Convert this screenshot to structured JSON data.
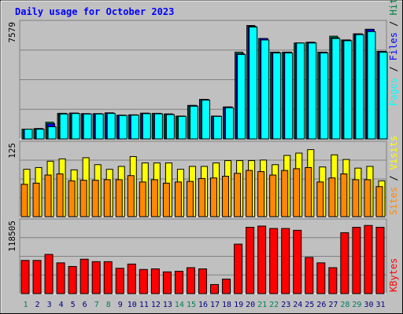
{
  "title": "Daily usage for October 2023",
  "colors": {
    "page_bg": "#c0c0c0",
    "plot_bg": "#c0c0c0",
    "title": "#0000ff",
    "hits": "#00ffff",
    "files": "#0000ff",
    "pages": "#00ffff",
    "visits": "#ffff00",
    "sites": "#ff8800",
    "kbytes": "#ff0000",
    "weekend_day": "#00805c",
    "weekday_day": "#000080",
    "divider_hits": "#008040",
    "divider_files": "#0000ff",
    "divider_pages": "#00c0c0",
    "divider_visits": "#c0c000",
    "divider_sites": "#ff8000"
  },
  "chart_data": [
    {
      "type": "bar",
      "panel": "hits-files-pages",
      "ylabel": [
        "Hits",
        "Files",
        "Pages"
      ],
      "ymax_label": "7579",
      "ylim": [
        0,
        7579
      ],
      "categories": [
        "1",
        "2",
        "3",
        "4",
        "5",
        "6",
        "7",
        "8",
        "9",
        "10",
        "11",
        "12",
        "13",
        "14",
        "15",
        "16",
        "17",
        "18",
        "19",
        "20",
        "21",
        "22",
        "23",
        "24",
        "25",
        "26",
        "27",
        "28",
        "29",
        "30",
        "31"
      ],
      "series": [
        {
          "name": "Hits",
          "values": [
            640,
            680,
            1100,
            1680,
            1700,
            1660,
            1660,
            1710,
            1560,
            1580,
            1690,
            1680,
            1640,
            1500,
            2200,
            2600,
            1500,
            2100,
            5700,
            7450,
            6600,
            5700,
            5700,
            6300,
            6350,
            5700,
            6750,
            6500,
            6900,
            7200,
            5750
          ]
        },
        {
          "name": "Files",
          "values": [
            640,
            680,
            1000,
            1680,
            1700,
            1660,
            1660,
            1710,
            1560,
            1580,
            1690,
            1680,
            1640,
            1500,
            2200,
            2600,
            1500,
            2100,
            5600,
            7400,
            6600,
            5700,
            5700,
            6300,
            6350,
            5700,
            6650,
            6500,
            6900,
            7200,
            5750
          ]
        },
        {
          "name": "Pages",
          "values": [
            640,
            640,
            800,
            1640,
            1670,
            1640,
            1640,
            1680,
            1540,
            1560,
            1660,
            1650,
            1600,
            1480,
            2150,
            2550,
            1480,
            2050,
            5550,
            7350,
            6500,
            5650,
            5650,
            6300,
            6300,
            5650,
            6600,
            6450,
            6850,
            7050,
            5700
          ]
        }
      ]
    },
    {
      "type": "bar",
      "panel": "visits-sites",
      "ylabel": [
        "Visits",
        "Sites"
      ],
      "ymax_label": "125",
      "ylim": [
        0,
        125
      ],
      "categories": [
        "1",
        "2",
        "3",
        "4",
        "5",
        "6",
        "7",
        "8",
        "9",
        "10",
        "11",
        "12",
        "13",
        "14",
        "15",
        "16",
        "17",
        "18",
        "19",
        "20",
        "21",
        "22",
        "23",
        "24",
        "25",
        "26",
        "27",
        "28",
        "29",
        "30",
        "31"
      ],
      "series": [
        {
          "name": "Visits",
          "values": [
            82,
            85,
            96,
            100,
            81,
            102,
            90,
            82,
            87,
            104,
            93,
            93,
            93,
            82,
            87,
            87,
            93,
            97,
            97,
            97,
            98,
            90,
            106,
            110,
            116,
            86,
            107,
            99,
            84,
            87,
            62
          ]
        },
        {
          "name": "Sites",
          "values": [
            56,
            58,
            72,
            74,
            62,
            63,
            63,
            64,
            64,
            71,
            60,
            64,
            58,
            60,
            61,
            66,
            67,
            70,
            75,
            80,
            78,
            72,
            80,
            83,
            85,
            60,
            67,
            74,
            64,
            64,
            52
          ]
        }
      ]
    },
    {
      "type": "bar",
      "panel": "kbytes",
      "ylabel": [
        "KBytes"
      ],
      "ymax_label": "118505",
      "ylim": [
        0,
        118505
      ],
      "categories": [
        "1",
        "2",
        "3",
        "4",
        "5",
        "6",
        "7",
        "8",
        "9",
        "10",
        "11",
        "12",
        "13",
        "14",
        "15",
        "16",
        "17",
        "18",
        "19",
        "20",
        "21",
        "22",
        "23",
        "24",
        "25",
        "26",
        "27",
        "28",
        "29",
        "30",
        "31"
      ],
      "series": [
        {
          "name": "KBytes",
          "values": [
            55000,
            55000,
            65000,
            51000,
            45000,
            57000,
            53000,
            53000,
            42000,
            49000,
            40000,
            41000,
            36000,
            37000,
            43000,
            41000,
            15000,
            24000,
            82000,
            110000,
            112000,
            108000,
            108000,
            105000,
            60000,
            51000,
            43000,
            101000,
            110000,
            113000,
            110000
          ]
        }
      ]
    }
  ]
}
